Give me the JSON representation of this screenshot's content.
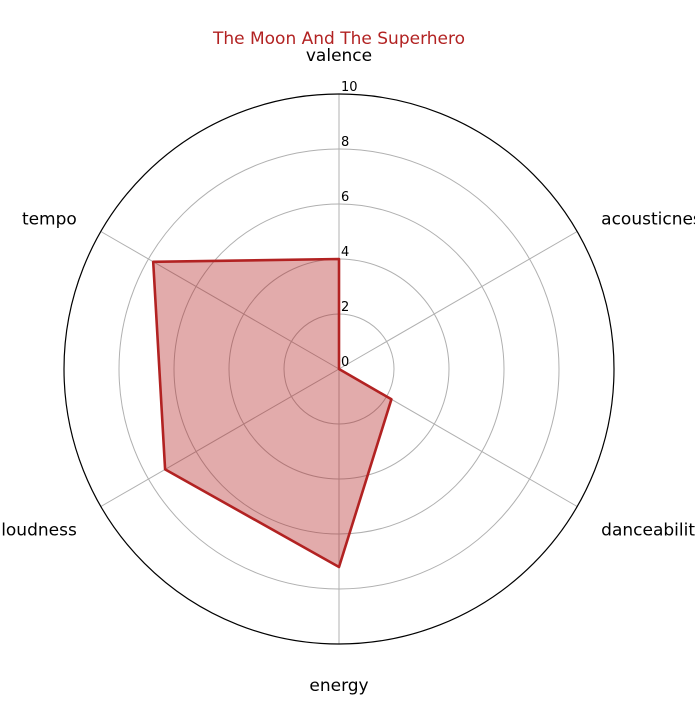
{
  "chart_data": {
    "type": "radar",
    "title": "The Moon And The Superhero",
    "axes": [
      "valence",
      "acousticness",
      "danceability",
      "energy",
      "loudness",
      "tempo"
    ],
    "values": [
      4.0,
      0.0,
      2.2,
      7.2,
      7.3,
      7.8
    ],
    "rlim": [
      0,
      10
    ],
    "rticks": [
      "0",
      "2",
      "4",
      "6",
      "8",
      "10"
    ],
    "grid": true,
    "colors": {
      "title": "#b22222",
      "line": "#b22222",
      "fill": "#b22222",
      "grid": "#b0b0b0",
      "frame": "#000000"
    }
  }
}
